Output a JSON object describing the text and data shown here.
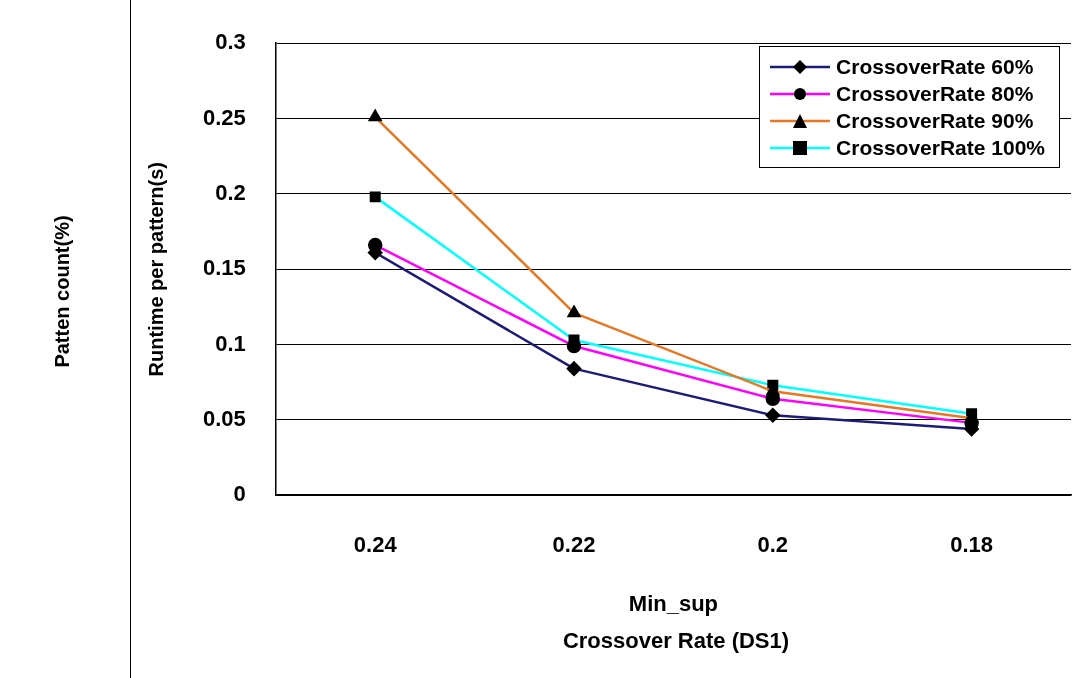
{
  "chart_data": {
    "type": "line",
    "title": "Crossover Rate (DS1)",
    "xlabel": "Min_sup",
    "ylabel": "Runtime per pattern(s)",
    "annotations": [
      "Patten count(%)"
    ],
    "categories": [
      "0.24",
      "0.22",
      "0.2",
      "0.18"
    ],
    "series": [
      {
        "name": "CrossoverRate 60%",
        "color": "#1c1c78",
        "marker": "diamond",
        "values": [
          0.161,
          0.084,
          0.053,
          0.044
        ]
      },
      {
        "name": "CrossoverRate 80%",
        "color": "#ff00ff",
        "marker": "circle",
        "values": [
          0.166,
          0.099,
          0.064,
          0.048
        ]
      },
      {
        "name": "CrossoverRate 90%",
        "color": "#e87722",
        "marker": "triangle",
        "values": [
          0.251,
          0.121,
          0.069,
          0.051
        ]
      },
      {
        "name": "CrossoverRate 100%",
        "color": "#00ffff",
        "marker": "square",
        "values": [
          0.198,
          0.103,
          0.073,
          0.054
        ]
      }
    ],
    "ylim": [
      0,
      0.3
    ],
    "yticks": [
      0,
      0.05,
      0.1,
      0.15,
      0.2,
      0.25,
      0.3
    ],
    "grid": "y",
    "legend": "top right",
    "line_style": "solid"
  }
}
